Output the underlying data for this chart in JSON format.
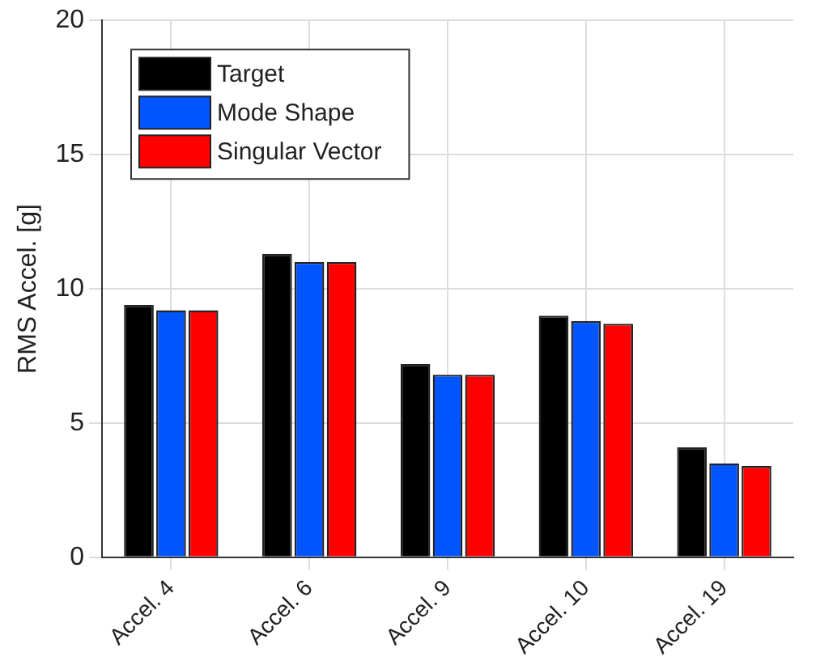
{
  "chart_data": {
    "type": "bar",
    "ylabel": "RMS Accel. [g]",
    "categories": [
      "Accel. 4",
      "Accel. 6",
      "Accel. 9",
      "Accel. 10",
      "Accel. 19"
    ],
    "series": [
      {
        "name": "Target",
        "color": "#000000",
        "values": [
          9.4,
          11.3,
          7.2,
          9.0,
          4.1
        ]
      },
      {
        "name": "Mode Shape",
        "color": "#0055ff",
        "values": [
          9.2,
          11.0,
          6.8,
          8.8,
          3.5
        ]
      },
      {
        "name": "Singular Vector",
        "color": "#ff0000",
        "values": [
          9.2,
          11.0,
          6.8,
          8.7,
          3.4
        ]
      }
    ],
    "ylim": [
      0,
      20
    ],
    "yticks": [
      0,
      5,
      10,
      15,
      20
    ],
    "grid": true,
    "legend": "top left"
  }
}
